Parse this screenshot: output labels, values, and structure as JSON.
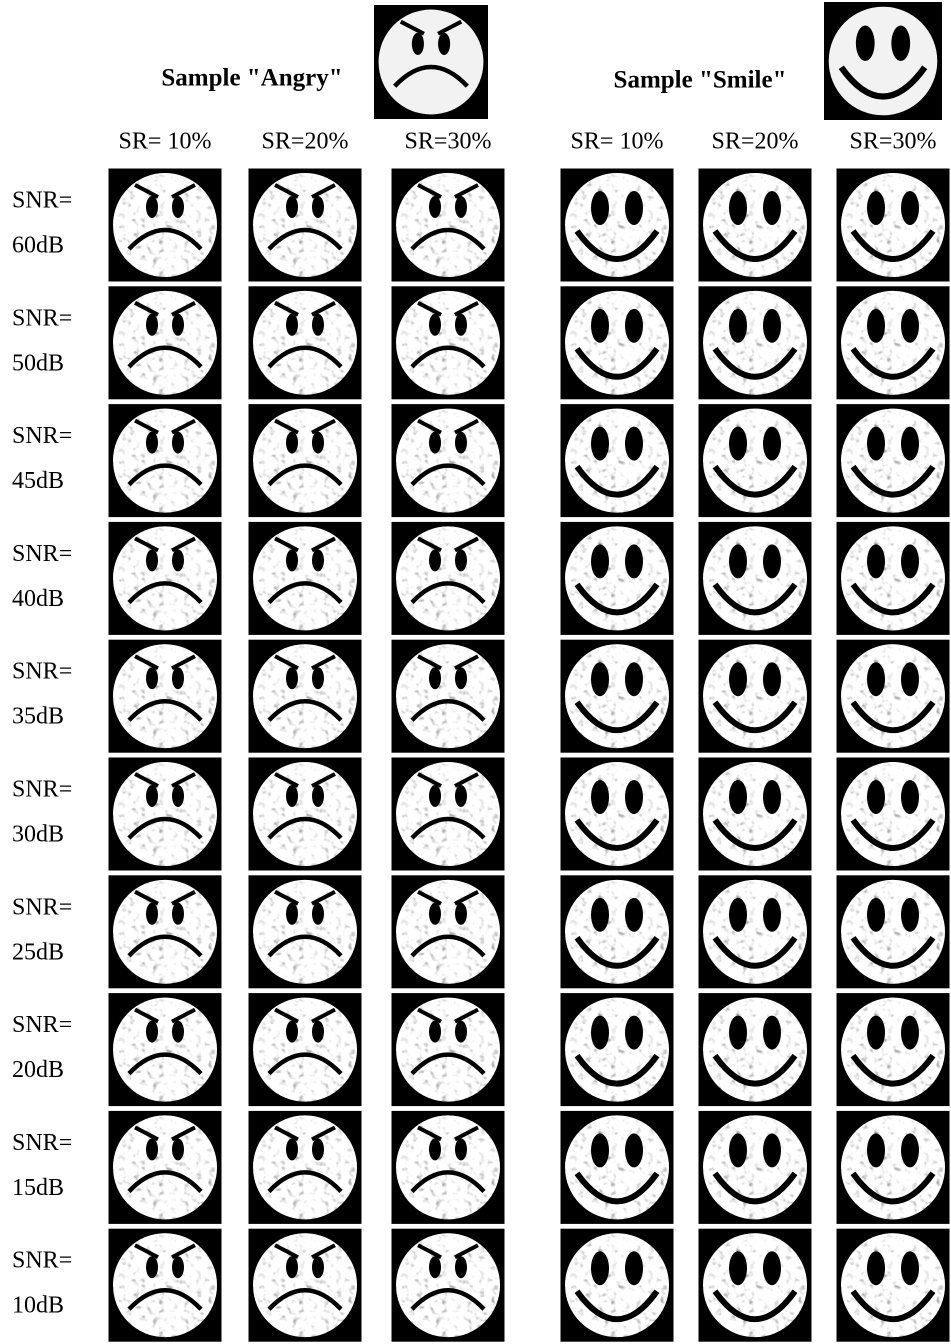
{
  "header": {
    "angry_title": "Sample \"Angry\"",
    "smile_title": "Sample \"Smile\""
  },
  "columns": {
    "angry": [
      "SR= 10%",
      "SR=20%",
      "SR=30%"
    ],
    "smile": [
      "SR= 10%",
      "SR=20%",
      "SR=30%"
    ]
  },
  "rows": [
    [
      "SNR=",
      "60dB"
    ],
    [
      "SNR=",
      "50dB"
    ],
    [
      "SNR=",
      "45dB"
    ],
    [
      "SNR=",
      "40dB"
    ],
    [
      "SNR=",
      "35dB"
    ],
    [
      "SNR=",
      "30dB"
    ],
    [
      "SNR=",
      "25dB"
    ],
    [
      "SNR=",
      "20dB"
    ],
    [
      "SNR=",
      "15dB"
    ],
    [
      "SNR=",
      "10dB"
    ]
  ]
}
